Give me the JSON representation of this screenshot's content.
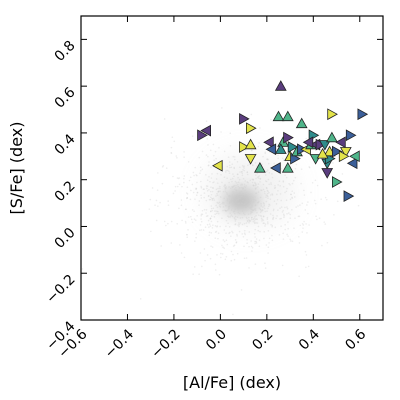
{
  "chart_data": {
    "type": "scatter",
    "xlabel": "[Al/Fe] (dex)",
    "ylabel": "[S/Fe] (dex)",
    "xlim": [
      -0.6,
      0.7
    ],
    "ylim": [
      -0.4,
      0.9
    ],
    "xticks": [
      "−0.6",
      "−0.4",
      "−0.2",
      "0.0",
      "0.2",
      "0.4",
      "0.6"
    ],
    "yticks": [
      "−0.4",
      "−0.2",
      "0.0",
      "0.2",
      "0.4",
      "0.6",
      "0.8"
    ],
    "xtick_values": [
      -0.6,
      -0.4,
      -0.2,
      0.0,
      0.2,
      0.4,
      0.6
    ],
    "ytick_values": [
      -0.4,
      -0.2,
      0.0,
      0.2,
      0.4,
      0.6,
      0.8
    ],
    "grid": false,
    "background_density": {
      "color": "#c0c0c0",
      "core_center": [
        0.09,
        0.11
      ],
      "core_spread": [
        0.07,
        0.045
      ],
      "halo_spread": [
        0.16,
        0.12
      ]
    },
    "colors": {
      "dark_purple": "#5a3d7e",
      "blue": "#3b5f99",
      "teal": "#2f8c8c",
      "green": "#4fb58a",
      "yellow": "#e3e34a",
      "edge": "#222222"
    },
    "points": [
      {
        "x": -0.08,
        "y": 0.39,
        "dir": "right",
        "color": "dark_purple"
      },
      {
        "x": -0.06,
        "y": 0.41,
        "dir": "left",
        "color": "dark_purple"
      },
      {
        "x": -0.01,
        "y": 0.26,
        "dir": "left",
        "color": "yellow"
      },
      {
        "x": 0.1,
        "y": 0.46,
        "dir": "right",
        "color": "dark_purple"
      },
      {
        "x": 0.13,
        "y": 0.42,
        "dir": "right",
        "color": "yellow"
      },
      {
        "x": 0.1,
        "y": 0.34,
        "dir": "right",
        "color": "yellow"
      },
      {
        "x": 0.13,
        "y": 0.35,
        "dir": "up",
        "color": "yellow"
      },
      {
        "x": 0.13,
        "y": 0.29,
        "dir": "down",
        "color": "yellow"
      },
      {
        "x": 0.17,
        "y": 0.25,
        "dir": "up",
        "color": "green"
      },
      {
        "x": 0.21,
        "y": 0.36,
        "dir": "left",
        "color": "dark_purple"
      },
      {
        "x": 0.22,
        "y": 0.33,
        "dir": "left",
        "color": "blue"
      },
      {
        "x": 0.24,
        "y": 0.25,
        "dir": "left",
        "color": "blue"
      },
      {
        "x": 0.25,
        "y": 0.47,
        "dir": "up",
        "color": "green"
      },
      {
        "x": 0.26,
        "y": 0.6,
        "dir": "up",
        "color": "dark_purple"
      },
      {
        "x": 0.27,
        "y": 0.36,
        "dir": "up",
        "color": "green"
      },
      {
        "x": 0.29,
        "y": 0.38,
        "dir": "right",
        "color": "dark_purple"
      },
      {
        "x": 0.29,
        "y": 0.47,
        "dir": "up",
        "color": "green"
      },
      {
        "x": 0.29,
        "y": 0.25,
        "dir": "up",
        "color": "green"
      },
      {
        "x": 0.3,
        "y": 0.3,
        "dir": "up",
        "color": "yellow"
      },
      {
        "x": 0.31,
        "y": 0.34,
        "dir": "right",
        "color": "teal"
      },
      {
        "x": 0.32,
        "y": 0.29,
        "dir": "right",
        "color": "blue"
      },
      {
        "x": 0.33,
        "y": 0.32,
        "dir": "up",
        "color": "green"
      },
      {
        "x": 0.35,
        "y": 0.33,
        "dir": "right",
        "color": "blue"
      },
      {
        "x": 0.35,
        "y": 0.44,
        "dir": "up",
        "color": "green"
      },
      {
        "x": 0.37,
        "y": 0.33,
        "dir": "left",
        "color": "yellow"
      },
      {
        "x": 0.39,
        "y": 0.35,
        "dir": "up",
        "color": "green"
      },
      {
        "x": 0.4,
        "y": 0.39,
        "dir": "right",
        "color": "teal"
      },
      {
        "x": 0.41,
        "y": 0.35,
        "dir": "left",
        "color": "dark_purple"
      },
      {
        "x": 0.41,
        "y": 0.29,
        "dir": "down",
        "color": "green"
      },
      {
        "x": 0.43,
        "y": 0.35,
        "dir": "right",
        "color": "dark_purple"
      },
      {
        "x": 0.45,
        "y": 0.35,
        "dir": "down",
        "color": "teal"
      },
      {
        "x": 0.46,
        "y": 0.27,
        "dir": "down",
        "color": "teal"
      },
      {
        "x": 0.47,
        "y": 0.29,
        "dir": "right",
        "color": "teal"
      },
      {
        "x": 0.47,
        "y": 0.32,
        "dir": "up",
        "color": "yellow"
      },
      {
        "x": 0.48,
        "y": 0.48,
        "dir": "right",
        "color": "yellow"
      },
      {
        "x": 0.48,
        "y": 0.38,
        "dir": "up",
        "color": "green"
      },
      {
        "x": 0.5,
        "y": 0.32,
        "dir": "right",
        "color": "blue"
      },
      {
        "x": 0.52,
        "y": 0.36,
        "dir": "left",
        "color": "dark_purple"
      },
      {
        "x": 0.54,
        "y": 0.32,
        "dir": "down",
        "color": "yellow"
      },
      {
        "x": 0.56,
        "y": 0.39,
        "dir": "right",
        "color": "blue"
      },
      {
        "x": 0.57,
        "y": 0.27,
        "dir": "left",
        "color": "blue"
      },
      {
        "x": 0.58,
        "y": 0.3,
        "dir": "left",
        "color": "green"
      },
      {
        "x": 0.61,
        "y": 0.48,
        "dir": "right",
        "color": "blue"
      },
      {
        "x": 0.46,
        "y": 0.23,
        "dir": "down",
        "color": "dark_purple"
      },
      {
        "x": 0.5,
        "y": 0.19,
        "dir": "right",
        "color": "green"
      },
      {
        "x": 0.55,
        "y": 0.13,
        "dir": "right",
        "color": "blue"
      },
      {
        "x": 0.53,
        "y": 0.3,
        "dir": "right",
        "color": "yellow"
      },
      {
        "x": 0.44,
        "y": 0.31,
        "dir": "up",
        "color": "yellow"
      },
      {
        "x": 0.38,
        "y": 0.36,
        "dir": "left",
        "color": "dark_purple"
      },
      {
        "x": 0.26,
        "y": 0.33,
        "dir": "up",
        "color": "teal"
      }
    ]
  }
}
